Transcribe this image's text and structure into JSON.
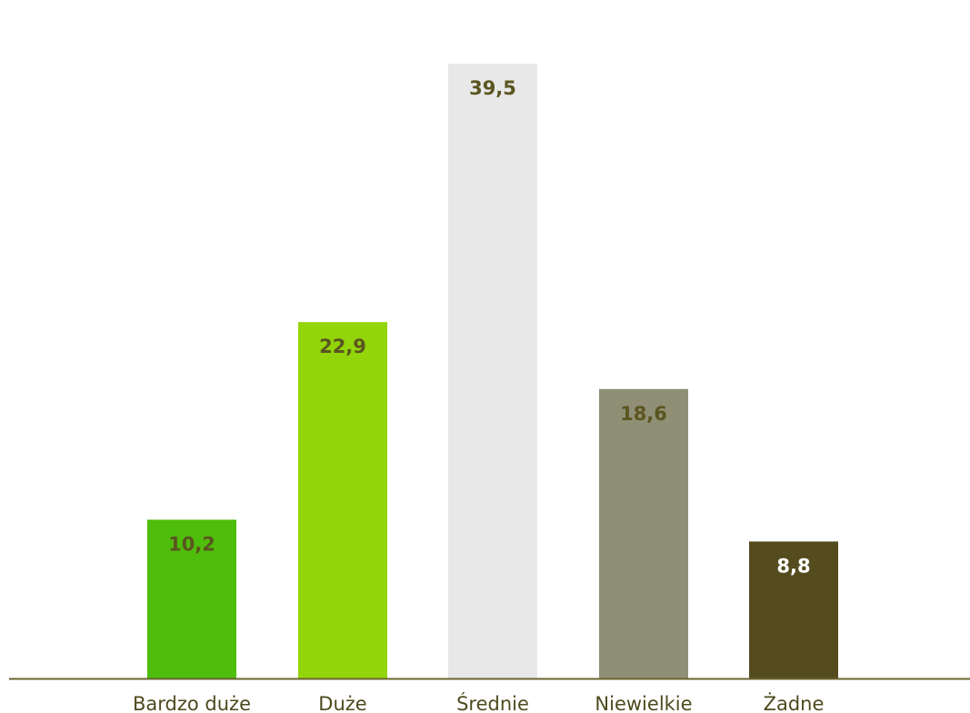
{
  "chart_data": {
    "type": "bar",
    "categories": [
      "Bardzo duże",
      "Duże",
      "Średnie",
      "Niewielkie",
      "Żadne"
    ],
    "values": [
      10.2,
      22.9,
      39.5,
      18.6,
      8.8
    ],
    "value_labels": [
      "10,2",
      "22,9",
      "39,5",
      "18,6",
      "8,8"
    ],
    "ylim": [
      0,
      43.6
    ],
    "grid": false,
    "legend": "none",
    "colors": [
      "#4fbd0b",
      "#92d50a",
      "#e8e8e8",
      "#8f8f76",
      "#544c1f"
    ],
    "label_colors": [
      "#5b5520",
      "#5b5520",
      "#5b5520",
      "#5b5520",
      "#ffffff"
    ],
    "axis_color": "#6b6430"
  }
}
